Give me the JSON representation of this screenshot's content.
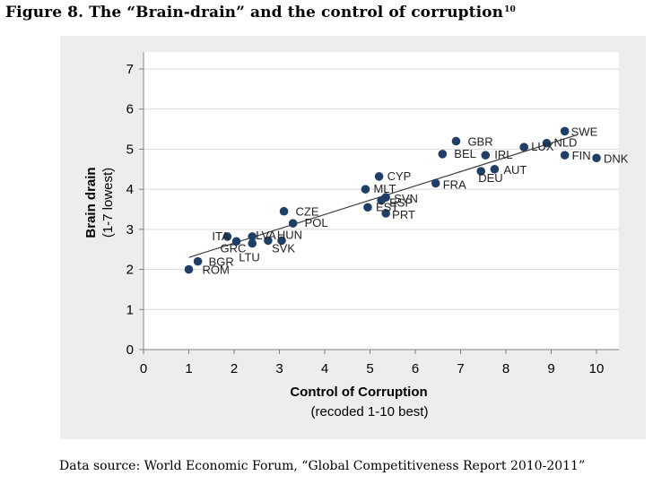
{
  "figure": {
    "title": "Figure 8. The “Brain-drain” and the control of corruption",
    "footnote_ref": "10",
    "source": "Data source: World Economic Forum, “Global Competitiveness Report 2010-2011”"
  },
  "chart_data": {
    "type": "scatter",
    "title": "",
    "xlabel": "Control of Corruption",
    "xlabel_sub": "(recoded 1-10 best)",
    "ylabel": "Brain drain",
    "ylabel_sub": "(1-7 lowest)",
    "xlim": [
      0,
      10
    ],
    "ylim": [
      0,
      7
    ],
    "x_ticks": [
      0,
      1,
      2,
      3,
      4,
      5,
      6,
      7,
      8,
      9,
      10
    ],
    "y_ticks": [
      0,
      1,
      2,
      3,
      4,
      5,
      6,
      7
    ],
    "grid": "horizontal",
    "legend": "none",
    "marker_color": "#1f3f66",
    "trendline": {
      "x1": 1.0,
      "y1": 2.3,
      "x2": 9.55,
      "y2": 5.35
    },
    "points": [
      {
        "label": "SWE",
        "x": 9.3,
        "y": 5.45
      },
      {
        "label": "LUX",
        "x": 8.4,
        "y": 5.05
      },
      {
        "label": "NLD",
        "x": 8.9,
        "y": 5.15
      },
      {
        "label": "FIN",
        "x": 9.3,
        "y": 4.85
      },
      {
        "label": "DNK",
        "x": 10.0,
        "y": 4.78
      },
      {
        "label": "GBR",
        "x": 6.9,
        "y": 5.2
      },
      {
        "label": "BEL",
        "x": 6.6,
        "y": 4.88
      },
      {
        "label": "IRL",
        "x": 7.55,
        "y": 4.85
      },
      {
        "label": "AUT",
        "x": 7.75,
        "y": 4.5
      },
      {
        "label": "DEU",
        "x": 7.45,
        "y": 4.45
      },
      {
        "label": "FRA",
        "x": 6.45,
        "y": 4.15
      },
      {
        "label": "CYP",
        "x": 5.2,
        "y": 4.32
      },
      {
        "label": "MLT",
        "x": 4.9,
        "y": 4.0
      },
      {
        "label": "SVN",
        "x": 5.35,
        "y": 3.8
      },
      {
        "label": "ESP",
        "x": 5.25,
        "y": 3.72
      },
      {
        "label": "EST",
        "x": 4.95,
        "y": 3.55
      },
      {
        "label": "PRT",
        "x": 5.35,
        "y": 3.4
      },
      {
        "label": "CZE",
        "x": 3.1,
        "y": 3.45
      },
      {
        "label": "POL",
        "x": 3.3,
        "y": 3.15
      },
      {
        "label": "HUN",
        "x": 2.75,
        "y": 2.72
      },
      {
        "label": "SVK",
        "x": 3.05,
        "y": 2.72
      },
      {
        "label": "LVA",
        "x": 2.4,
        "y": 2.82
      },
      {
        "label": "ITA",
        "x": 1.85,
        "y": 2.82
      },
      {
        "label": "GRC",
        "x": 2.05,
        "y": 2.7
      },
      {
        "label": "LTU",
        "x": 2.4,
        "y": 2.65
      },
      {
        "label": "BGR",
        "x": 1.2,
        "y": 2.2
      },
      {
        "label": "ROM",
        "x": 1.0,
        "y": 2.0
      }
    ]
  }
}
